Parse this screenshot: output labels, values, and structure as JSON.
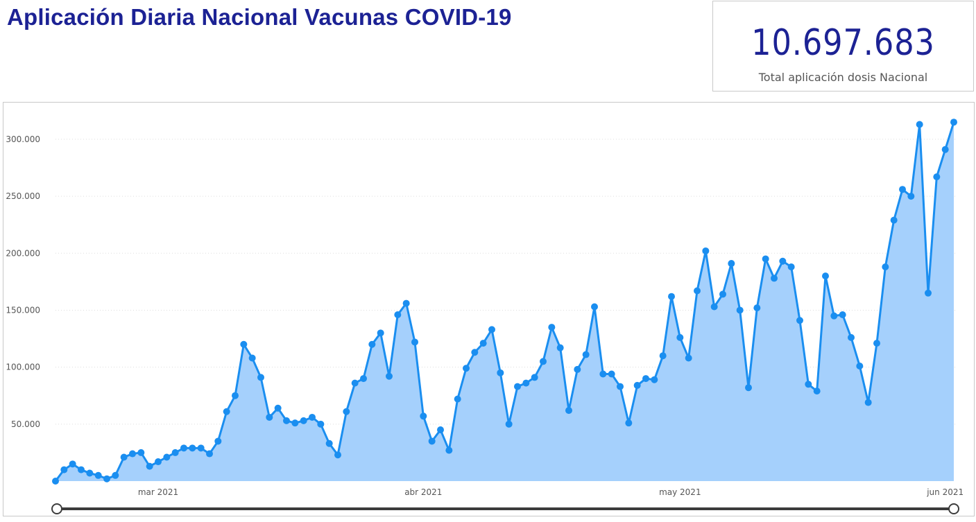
{
  "header": {
    "title": "Aplicación Diaria Nacional Vacunas COVID-19"
  },
  "kpi": {
    "value": "10.697.683",
    "label": "Total aplicación dosis Nacional"
  },
  "colors": {
    "title": "#1c2294",
    "line": "#1a8ef0",
    "area": "#a5d0fc",
    "grid": "#dddddd"
  },
  "chart_data": {
    "type": "area",
    "title": "",
    "xlabel": "",
    "ylabel": "",
    "ylim": [
      0,
      320000
    ],
    "y_ticks": [
      50000,
      100000,
      150000,
      200000,
      250000,
      300000
    ],
    "y_tick_labels": [
      "50.000",
      "100.000",
      "150.000",
      "200.000",
      "250.000",
      "300.000"
    ],
    "x_ticks": [
      "2021-03-01",
      "2021-04-01",
      "2021-05-01",
      "2021-06-01"
    ],
    "x_tick_labels": [
      "mar 2021",
      "abr 2021",
      "may 2021",
      "jun 2021"
    ],
    "x_start": "2021-02-17",
    "grid": "horizontal dotted",
    "series": [
      {
        "values": [
          0,
          10000,
          15000,
          10000,
          7000,
          5000,
          2000,
          5000,
          21000,
          24000,
          25000,
          13000,
          17000,
          21000,
          25000,
          29000,
          29000,
          29000,
          24000,
          35000,
          61000,
          75000,
          120000,
          108000,
          91000,
          56000,
          64000,
          53000,
          51000,
          53000,
          56000,
          50000,
          33000,
          23000,
          61000,
          86000,
          90000,
          120000,
          130000,
          92000,
          146000,
          156000,
          122000,
          57000,
          35000,
          45000,
          27000,
          72000,
          99000,
          113000,
          121000,
          133000,
          95000,
          50000,
          83000,
          86000,
          91000,
          105000,
          135000,
          117000,
          62000,
          98000,
          111000,
          153000,
          94000,
          94000,
          83000,
          51000,
          84000,
          90000,
          89000,
          110000,
          162000,
          126000,
          108000,
          167000,
          202000,
          153000,
          164000,
          191000,
          150000,
          82000,
          152000,
          195000,
          178000,
          193000,
          188000,
          141000,
          85000,
          79000,
          180000,
          145000,
          146000,
          126000,
          101000,
          69000,
          121000,
          188000,
          229000,
          256000,
          250000,
          313000,
          165000,
          267000,
          291000,
          315000
        ]
      }
    ]
  }
}
